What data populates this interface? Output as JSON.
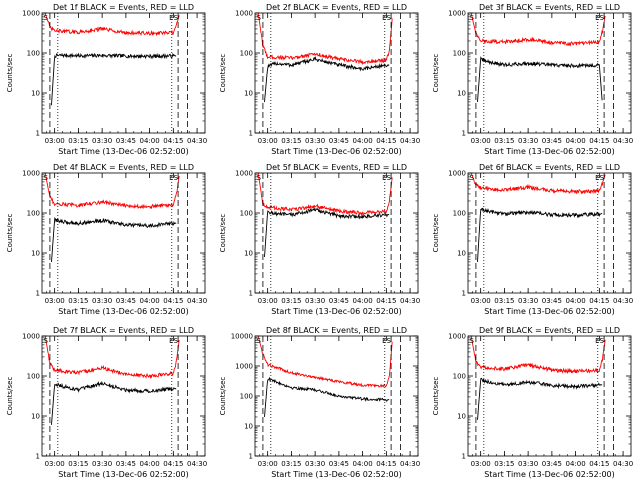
{
  "figure": {
    "start_time_label": "Start Time (13-Dec-06 02:52:00)",
    "ylabel": "Counts/sec",
    "x_ticks": [
      "03:00",
      "03:15",
      "03:30",
      "03:45",
      "04:00",
      "04:15",
      "04:30"
    ],
    "colors": {
      "events": "#000000",
      "lld": "#ff0000",
      "axes": "#000000"
    }
  },
  "chart_data": [
    {
      "type": "line",
      "title": "Det 1f BLACK = Events, RED = LLD",
      "yscale": "log",
      "ylim": [
        1,
        1000
      ],
      "y_ticks": [
        "1",
        "10",
        "100",
        "1000"
      ],
      "x_ticks": [
        "03:00",
        "03:15",
        "03:30",
        "03:45",
        "04:00",
        "04:15",
        "04:30"
      ],
      "xlabel": "Start Time (13-Dec-06 02:52:00)",
      "ylabel": "Counts/sec",
      "markers": {
        "left": "S",
        "right": "ES"
      },
      "series": [
        {
          "name": "Events",
          "color": "#000000",
          "x": [
            "02:58",
            "03:00",
            "03:05",
            "03:15",
            "03:30",
            "03:45",
            "04:00",
            "04:15",
            "04:17"
          ],
          "values": [
            5,
            85,
            88,
            85,
            87,
            84,
            83,
            85,
            85
          ]
        },
        {
          "name": "LLD",
          "color": "#ff0000",
          "x": [
            "02:54",
            "02:57",
            "03:00",
            "03:15",
            "03:30",
            "03:45",
            "04:00",
            "04:15",
            "04:17",
            "04:19"
          ],
          "values": [
            1000,
            430,
            360,
            330,
            400,
            320,
            310,
            320,
            480,
            1000
          ]
        }
      ]
    },
    {
      "type": "line",
      "title": "Det 2f BLACK = Events, RED = LLD",
      "yscale": "log",
      "ylim": [
        1,
        1000
      ],
      "y_ticks": [
        "1",
        "10",
        "100",
        "1000"
      ],
      "x_ticks": [
        "03:00",
        "03:15",
        "03:30",
        "03:45",
        "04:00",
        "04:15",
        "04:30"
      ],
      "xlabel": "Start Time (13-Dec-06 02:52:00)",
      "ylabel": "Counts/sec",
      "markers": {
        "left": "S",
        "right": "ES"
      },
      "series": [
        {
          "name": "Events",
          "color": "#000000",
          "x": [
            "02:58",
            "03:00",
            "03:05",
            "03:15",
            "03:30",
            "03:45",
            "04:00",
            "04:15",
            "04:17"
          ],
          "values": [
            6,
            45,
            55,
            50,
            70,
            50,
            40,
            50,
            50
          ]
        },
        {
          "name": "LLD",
          "color": "#ff0000",
          "x": [
            "02:54",
            "02:57",
            "03:00",
            "03:15",
            "03:30",
            "03:45",
            "04:00",
            "04:15",
            "04:17",
            "04:19"
          ],
          "values": [
            1000,
            150,
            80,
            75,
            95,
            70,
            60,
            65,
            120,
            1000
          ]
        }
      ]
    },
    {
      "type": "line",
      "title": "Det 3f BLACK = Events, RED = LLD",
      "yscale": "log",
      "ylim": [
        1,
        1000
      ],
      "y_ticks": [
        "1",
        "10",
        "100",
        "1000"
      ],
      "x_ticks": [
        "03:00",
        "03:15",
        "03:30",
        "03:45",
        "04:00",
        "04:15",
        "04:30"
      ],
      "xlabel": "Start Time (13-Dec-06 02:52:00)",
      "ylabel": "Counts/sec",
      "markers": {
        "left": "S",
        "right": "ES"
      },
      "series": [
        {
          "name": "Events",
          "color": "#000000",
          "x": [
            "02:58",
            "03:00",
            "03:05",
            "03:15",
            "03:30",
            "03:45",
            "04:00",
            "04:15",
            "04:17"
          ],
          "values": [
            6,
            70,
            60,
            50,
            55,
            50,
            48,
            50,
            5
          ]
        },
        {
          "name": "LLD",
          "color": "#ff0000",
          "x": [
            "02:54",
            "02:57",
            "03:00",
            "03:15",
            "03:30",
            "03:45",
            "04:00",
            "04:15",
            "04:17",
            "04:19"
          ],
          "values": [
            1000,
            300,
            200,
            190,
            220,
            180,
            170,
            190,
            350,
            1000
          ]
        }
      ]
    },
    {
      "type": "line",
      "title": "Det 4f BLACK = Events, RED = LLD",
      "yscale": "log",
      "ylim": [
        1,
        1000
      ],
      "y_ticks": [
        "1",
        "10",
        "100",
        "1000"
      ],
      "x_ticks": [
        "03:00",
        "03:15",
        "03:30",
        "03:45",
        "04:00",
        "04:15",
        "04:30"
      ],
      "xlabel": "Start Time (13-Dec-06 02:52:00)",
      "ylabel": "Counts/sec",
      "markers": {
        "left": "S",
        "right": "ES"
      },
      "series": [
        {
          "name": "Events",
          "color": "#000000",
          "x": [
            "02:58",
            "03:00",
            "03:05",
            "03:15",
            "03:30",
            "03:45",
            "04:00",
            "04:15",
            "04:17"
          ],
          "values": [
            6,
            70,
            60,
            55,
            65,
            50,
            48,
            55,
            55
          ]
        },
        {
          "name": "LLD",
          "color": "#ff0000",
          "x": [
            "02:54",
            "02:57",
            "03:00",
            "03:15",
            "03:30",
            "03:45",
            "04:00",
            "04:15",
            "04:17",
            "04:19"
          ],
          "values": [
            1000,
            250,
            170,
            155,
            190,
            150,
            145,
            160,
            300,
            1000
          ]
        }
      ]
    },
    {
      "type": "line",
      "title": "Det 5f BLACK = Events, RED = LLD",
      "yscale": "log",
      "ylim": [
        1,
        1000
      ],
      "y_ticks": [
        "1",
        "10",
        "100",
        "1000"
      ],
      "x_ticks": [
        "03:00",
        "03:15",
        "03:30",
        "03:45",
        "04:00",
        "04:15",
        "04:30"
      ],
      "xlabel": "Start Time (13-Dec-06 02:52:00)",
      "ylabel": "Counts/sec",
      "markers": {
        "left": "S",
        "right": "ES"
      },
      "series": [
        {
          "name": "Events",
          "color": "#000000",
          "x": [
            "02:58",
            "03:00",
            "03:05",
            "03:15",
            "03:30",
            "03:45",
            "04:00",
            "04:15",
            "04:17"
          ],
          "values": [
            8,
            110,
            95,
            90,
            120,
            85,
            80,
            90,
            90
          ]
        },
        {
          "name": "LLD",
          "color": "#ff0000",
          "x": [
            "02:54",
            "02:57",
            "03:00",
            "03:15",
            "03:30",
            "03:45",
            "04:00",
            "04:15",
            "04:17",
            "04:19"
          ],
          "values": [
            1000,
            170,
            140,
            120,
            150,
            110,
            100,
            110,
            200,
            1000
          ]
        }
      ]
    },
    {
      "type": "line",
      "title": "Det 6f BLACK = Events, RED = LLD",
      "yscale": "log",
      "ylim": [
        1,
        1000
      ],
      "y_ticks": [
        "1",
        "10",
        "100",
        "1000"
      ],
      "x_ticks": [
        "03:00",
        "03:15",
        "03:30",
        "03:45",
        "04:00",
        "04:15",
        "04:30"
      ],
      "xlabel": "Start Time (13-Dec-06 02:52:00)",
      "ylabel": "Counts/sec",
      "markers": {
        "left": "S",
        "right": "ES"
      },
      "series": [
        {
          "name": "Events",
          "color": "#000000",
          "x": [
            "02:58",
            "03:00",
            "03:05",
            "03:15",
            "03:30",
            "03:45",
            "04:00",
            "04:15",
            "04:17"
          ],
          "values": [
            6,
            125,
            110,
            95,
            105,
            90,
            88,
            95,
            95
          ]
        },
        {
          "name": "LLD",
          "color": "#ff0000",
          "x": [
            "02:54",
            "02:57",
            "03:00",
            "03:15",
            "03:30",
            "03:45",
            "04:00",
            "04:15",
            "04:17",
            "04:19"
          ],
          "values": [
            1000,
            500,
            420,
            370,
            440,
            360,
            340,
            360,
            550,
            1000
          ]
        }
      ]
    },
    {
      "type": "line",
      "title": "Det 7f BLACK = Events, RED = LLD",
      "yscale": "log",
      "ylim": [
        1,
        1000
      ],
      "y_ticks": [
        "1",
        "10",
        "100",
        "1000"
      ],
      "x_ticks": [
        "03:00",
        "03:15",
        "03:30",
        "03:45",
        "04:00",
        "04:15",
        "04:30"
      ],
      "xlabel": "Start Time (13-Dec-06 02:52:00)",
      "ylabel": "Counts/sec",
      "markers": {
        "left": "S",
        "right": "ES"
      },
      "series": [
        {
          "name": "Events",
          "color": "#000000",
          "x": [
            "02:58",
            "03:00",
            "03:05",
            "03:15",
            "03:30",
            "03:45",
            "04:00",
            "04:15",
            "04:17"
          ],
          "values": [
            6,
            65,
            55,
            45,
            65,
            45,
            42,
            48,
            48
          ]
        },
        {
          "name": "LLD",
          "color": "#ff0000",
          "x": [
            "02:54",
            "02:57",
            "03:00",
            "03:15",
            "03:30",
            "03:45",
            "04:00",
            "04:15",
            "04:17",
            "04:19"
          ],
          "values": [
            1000,
            200,
            140,
            120,
            160,
            110,
            100,
            115,
            240,
            1000
          ]
        }
      ]
    },
    {
      "type": "line",
      "title": "Det 8f BLACK = Events, RED = LLD",
      "yscale": "log",
      "ylim": [
        1,
        10000
      ],
      "y_ticks": [
        "1",
        "10",
        "100",
        "1000",
        "10000"
      ],
      "x_ticks": [
        "03:00",
        "03:15",
        "03:30",
        "03:45",
        "04:00",
        "04:15",
        "04:30"
      ],
      "xlabel": "Start Time (13-Dec-06 02:52:00)",
      "ylabel": "Counts/sec",
      "markers": {
        "left": "S",
        "right": "ES"
      },
      "series": [
        {
          "name": "Events",
          "color": "#000000",
          "x": [
            "02:58",
            "03:00",
            "03:05",
            "03:15",
            "03:30",
            "03:45",
            "04:00",
            "04:15",
            "04:17"
          ],
          "values": [
            20,
            380,
            300,
            190,
            160,
            100,
            80,
            75,
            75
          ]
        },
        {
          "name": "LLD",
          "color": "#ff0000",
          "x": [
            "02:54",
            "02:57",
            "03:00",
            "03:15",
            "03:30",
            "03:45",
            "04:00",
            "04:15",
            "04:17",
            "04:19"
          ],
          "values": [
            10000,
            2500,
            1100,
            600,
            420,
            300,
            230,
            220,
            500,
            10000
          ]
        }
      ]
    },
    {
      "type": "line",
      "title": "Det 9f BLACK = Events, RED = LLD",
      "yscale": "log",
      "ylim": [
        1,
        1000
      ],
      "y_ticks": [
        "1",
        "10",
        "100",
        "1000"
      ],
      "x_ticks": [
        "03:00",
        "03:15",
        "03:30",
        "03:45",
        "04:00",
        "04:15",
        "04:30"
      ],
      "xlabel": "Start Time (13-Dec-06 02:52:00)",
      "ylabel": "Counts/sec",
      "markers": {
        "left": "S",
        "right": "ES"
      },
      "series": [
        {
          "name": "Events",
          "color": "#000000",
          "x": [
            "02:58",
            "03:00",
            "03:05",
            "03:15",
            "03:30",
            "03:45",
            "04:00",
            "04:15",
            "04:17"
          ],
          "values": [
            8,
            80,
            70,
            60,
            70,
            58,
            55,
            60,
            60
          ]
        },
        {
          "name": "LLD",
          "color": "#ff0000",
          "x": [
            "02:54",
            "02:57",
            "03:00",
            "03:15",
            "03:30",
            "03:45",
            "04:00",
            "04:15",
            "04:17",
            "04:19"
          ],
          "values": [
            1000,
            220,
            170,
            150,
            190,
            140,
            130,
            140,
            260,
            1000
          ]
        }
      ]
    }
  ]
}
